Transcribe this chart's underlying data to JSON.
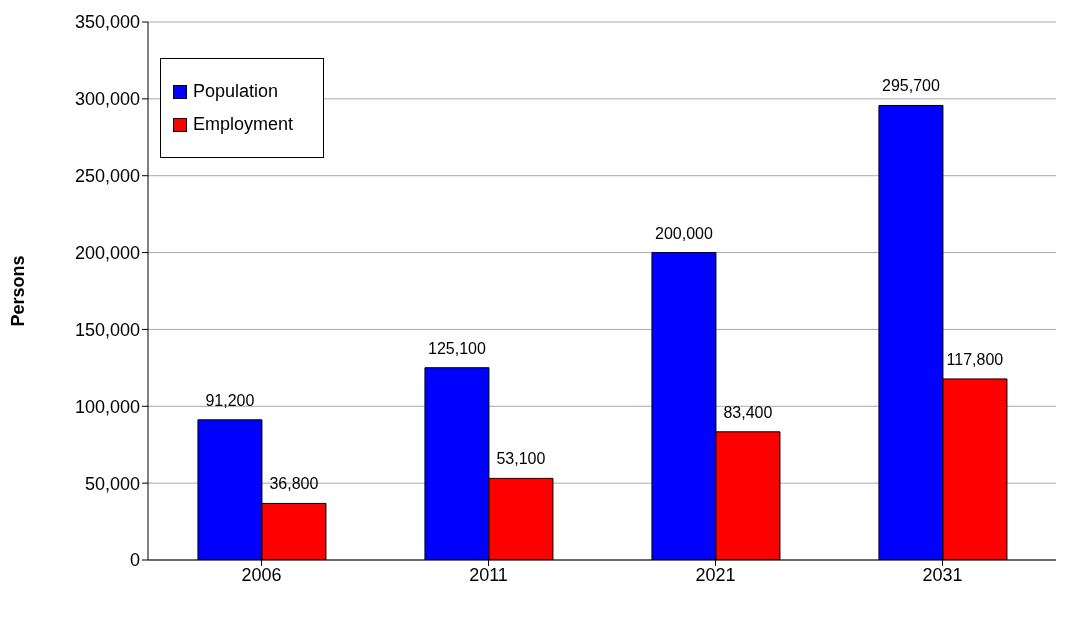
{
  "chart_data": {
    "type": "bar",
    "ylabel": "Persons",
    "categories": [
      "2006",
      "2011",
      "2021",
      "2031"
    ],
    "series": [
      {
        "name": "Population",
        "color": "#0000ff",
        "values": [
          91200,
          125100,
          200000,
          295700
        ],
        "value_labels": [
          "91,200",
          "125,100",
          "200,000",
          "295,700"
        ]
      },
      {
        "name": "Employment",
        "color": "#ff0000",
        "values": [
          36800,
          53100,
          83400,
          117800
        ],
        "value_labels": [
          "36,800",
          "53,100",
          "83,400",
          "117,800"
        ]
      }
    ],
    "ylim": [
      0,
      350000
    ],
    "yticks": [
      {
        "value": 0,
        "label": "0"
      },
      {
        "value": 50000,
        "label": "50,000"
      },
      {
        "value": 100000,
        "label": "100,000"
      },
      {
        "value": 150000,
        "label": "150,000"
      },
      {
        "value": 200000,
        "label": "200,000"
      },
      {
        "value": 250000,
        "label": "250,000"
      },
      {
        "value": 300000,
        "label": "300,000"
      },
      {
        "value": 350000,
        "label": "350,000"
      }
    ],
    "grid": "y",
    "legend": "top left"
  }
}
